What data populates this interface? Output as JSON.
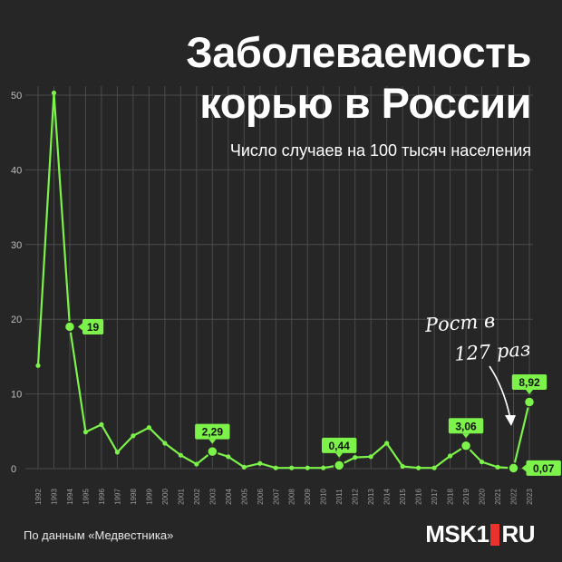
{
  "title_line1": "Заболеваемость",
  "title_line2": "корью в России",
  "subtitle": "Число случаев на 100 тысяч населения",
  "source": "По данным «Медвестника»",
  "logo_left": "MSK1",
  "logo_right": "RU",
  "annotation_line1": "Рост в",
  "annotation_line2": "127 раз",
  "colors": {
    "line": "#7cf24a",
    "background": "#262626",
    "grid": "#4a4a4a",
    "logo_accent": "#e8322b"
  },
  "chart_data": {
    "type": "line",
    "x": [
      "1992",
      "1993",
      "1994",
      "1995",
      "1996",
      "1997",
      "1998",
      "1999",
      "2000",
      "2001",
      "2002",
      "2003",
      "2004",
      "2005",
      "2006",
      "2007",
      "2008",
      "2009",
      "2010",
      "2011",
      "2012",
      "2013",
      "2014",
      "2015",
      "2016",
      "2017",
      "2018",
      "2019",
      "2020",
      "2021",
      "2022",
      "2023"
    ],
    "series": [
      {
        "values": [
          13.8,
          50.3,
          19,
          4.9,
          5.9,
          2.2,
          4.4,
          5.5,
          3.4,
          1.8,
          0.6,
          2.29,
          1.6,
          0.2,
          0.7,
          0.1,
          0.1,
          0.1,
          0.1,
          0.44,
          1.5,
          1.6,
          3.4,
          0.3,
          0.1,
          0.1,
          1.7,
          3.06,
          0.9,
          0.2,
          0.07,
          8.92
        ]
      }
    ],
    "yticks": [
      0,
      10,
      20,
      30,
      40,
      50
    ],
    "ylim": [
      0,
      50
    ],
    "grid": true,
    "annotations": [
      {
        "x": "1994",
        "label": "19"
      },
      {
        "x": "2003",
        "label": "2,29"
      },
      {
        "x": "2011",
        "label": "0,44"
      },
      {
        "x": "2019",
        "label": "3,06"
      },
      {
        "x": "2022",
        "label": "0,07"
      },
      {
        "x": "2023",
        "label": "8,92"
      }
    ]
  }
}
